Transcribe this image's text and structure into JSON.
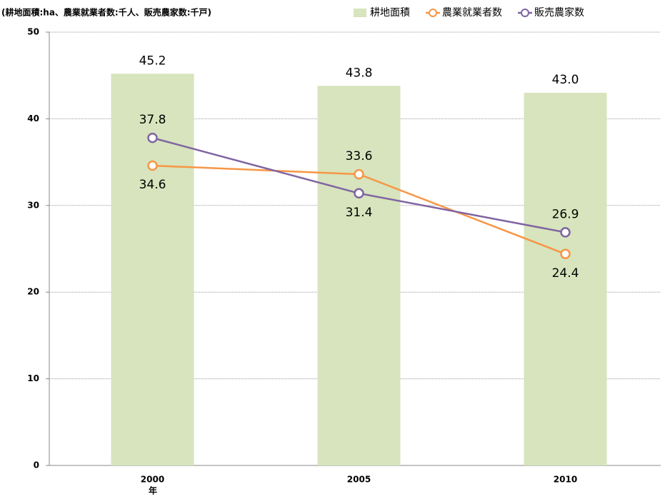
{
  "chart_data": {
    "type": "bar",
    "title": "(耕地面積:ha、農業就業者数:千人、販売農家数:千戸)",
    "x_label": "年",
    "categories": [
      "2000",
      "2005",
      "2010"
    ],
    "series": [
      {
        "name": "耕地面積",
        "type": "bar",
        "color": "#d7e4bd",
        "values": [
          45.2,
          43.8,
          43.0
        ],
        "value_labels": [
          "45.2",
          "43.8",
          "43.0"
        ]
      },
      {
        "name": "農業就業者数",
        "type": "line",
        "color": "#f79646",
        "values": [
          34.6,
          33.6,
          24.4
        ]
      },
      {
        "name": "販売農家数",
        "type": "line",
        "color": "#8064a2",
        "values": [
          37.8,
          31.4,
          26.9
        ]
      }
    ],
    "ylim": [
      0,
      50
    ],
    "yticks": [
      0,
      10,
      20,
      30,
      40,
      50
    ],
    "grid": true,
    "legend": "top-right"
  }
}
